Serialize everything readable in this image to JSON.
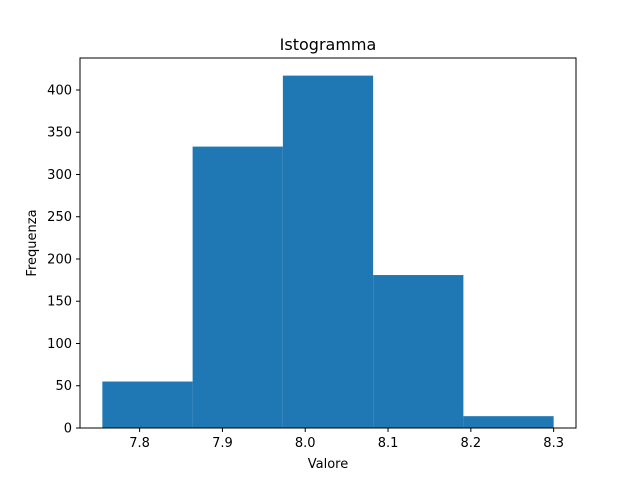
{
  "chart_data": {
    "type": "bar",
    "subtype": "histogram",
    "title": "Istogramma",
    "xlabel": "Valore",
    "ylabel": "Frequenza",
    "bins": [
      {
        "start": 7.755,
        "end": 7.864,
        "count": 55
      },
      {
        "start": 7.864,
        "end": 7.973,
        "count": 333
      },
      {
        "start": 7.973,
        "end": 8.082,
        "count": 417
      },
      {
        "start": 8.082,
        "end": 8.191,
        "count": 181
      },
      {
        "start": 8.191,
        "end": 8.3,
        "count": 14
      }
    ],
    "xlim": [
      7.728,
      8.327
    ],
    "ylim": [
      0,
      437.85
    ],
    "xticks": [
      7.8,
      7.9,
      8.0,
      8.1,
      8.2,
      8.3
    ],
    "xtick_labels": [
      "7.8",
      "7.9",
      "8.0",
      "8.1",
      "8.2",
      "8.3"
    ],
    "yticks": [
      0,
      50,
      100,
      150,
      200,
      250,
      300,
      350,
      400
    ],
    "ytick_labels": [
      "0",
      "50",
      "100",
      "150",
      "200",
      "250",
      "300",
      "350",
      "400"
    ],
    "bar_color": "#1f77b4",
    "grid": false,
    "legend": "none"
  }
}
